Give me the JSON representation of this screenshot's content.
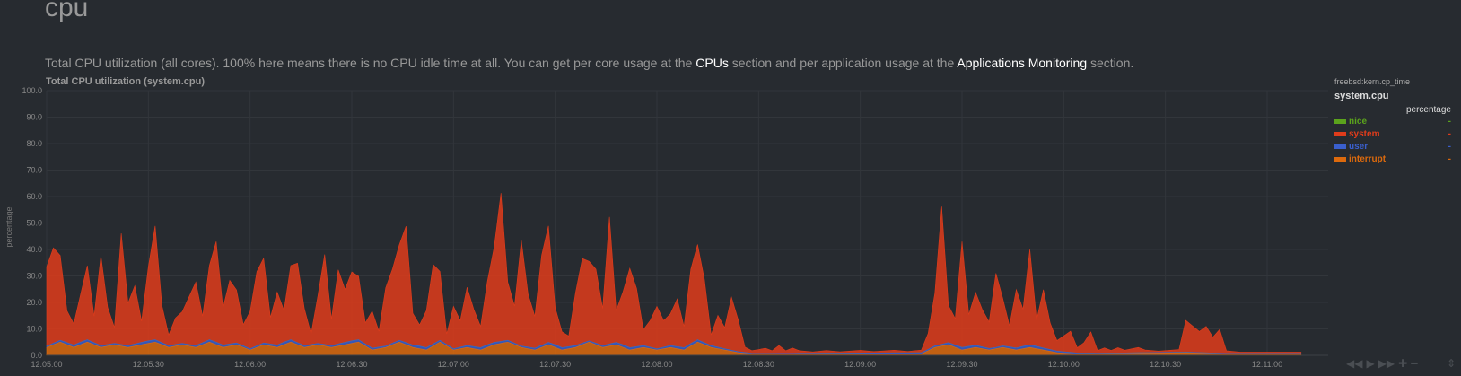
{
  "section": {
    "title": "cpu",
    "desc_1": "Total CPU utilization (all cores). 100% here means there is no CPU idle time at all. You can get per core usage at the ",
    "link_cpus": "CPUs",
    "desc_2": " section and per application usage at the ",
    "link_apps": "Applications Monitoring",
    "desc_3": " section."
  },
  "legend": {
    "context": "freebsd:kern.cp_time",
    "family": "system.cpu",
    "units": "percentage",
    "items": [
      {
        "name": "nice",
        "value": "-",
        "color": "#5ba31c"
      },
      {
        "name": "system",
        "value": "-",
        "color": "#e03c1b"
      },
      {
        "name": "user",
        "value": "-",
        "color": "#3a5fcd"
      },
      {
        "name": "interrupt",
        "value": "-",
        "color": "#dd6a0d"
      }
    ]
  },
  "toolbar": {
    "icons": [
      "rewind-icon",
      "play-icon",
      "fast-forward-icon",
      "zoom-in-icon",
      "zoom-out-icon"
    ],
    "glyphs": [
      "◀◀",
      "▶",
      "▶▶",
      "✚",
      "━"
    ],
    "resize_glyph": "⇕"
  },
  "chart_data": {
    "type": "area",
    "title": "Total CPU utilization (system.cpu)",
    "ylabel": "percentage",
    "xlabel": "",
    "ylim": [
      0,
      100
    ],
    "yticks": [
      "0.0",
      "10.0",
      "20.0",
      "30.0",
      "40.0",
      "50.0",
      "60.0",
      "70.0",
      "80.0",
      "90.0",
      "100.0"
    ],
    "x_start": "12:05:00",
    "x_end": "12:11:18",
    "xticks": [
      "12:05:00",
      "12:05:30",
      "12:06:00",
      "12:06:30",
      "12:07:00",
      "12:07:30",
      "12:08:00",
      "12:08:30",
      "12:09:00",
      "12:09:30",
      "12:10:00",
      "12:10:30",
      "12:11:00"
    ],
    "grid": true,
    "stacked": true,
    "series": [
      {
        "name": "system",
        "color": "#e03c1b",
        "points": [
          [
            "12:05:00",
            30
          ],
          [
            "12:05:02",
            36
          ],
          [
            "12:05:04",
            32
          ],
          [
            "12:05:06",
            12
          ],
          [
            "12:05:08",
            8
          ],
          [
            "12:05:10",
            18
          ],
          [
            "12:05:12",
            28
          ],
          [
            "12:05:14",
            10
          ],
          [
            "12:05:16",
            34
          ],
          [
            "12:05:18",
            14
          ],
          [
            "12:05:20",
            6
          ],
          [
            "12:05:22",
            42
          ],
          [
            "12:05:24",
            16
          ],
          [
            "12:05:26",
            22
          ],
          [
            "12:05:28",
            8
          ],
          [
            "12:05:30",
            28
          ],
          [
            "12:05:32",
            43
          ],
          [
            "12:05:34",
            14
          ],
          [
            "12:05:36",
            4
          ],
          [
            "12:05:38",
            10
          ],
          [
            "12:05:40",
            12
          ],
          [
            "12:05:42",
            18
          ],
          [
            "12:05:44",
            24
          ],
          [
            "12:05:46",
            10
          ],
          [
            "12:05:48",
            28
          ],
          [
            "12:05:50",
            38
          ],
          [
            "12:05:52",
            14
          ],
          [
            "12:05:54",
            24
          ],
          [
            "12:05:56",
            20
          ],
          [
            "12:05:58",
            8
          ],
          [
            "12:06:00",
            14
          ],
          [
            "12:06:02",
            28
          ],
          [
            "12:06:04",
            32
          ],
          [
            "12:06:06",
            10
          ],
          [
            "12:06:08",
            20
          ],
          [
            "12:06:10",
            12
          ],
          [
            "12:06:12",
            28
          ],
          [
            "12:06:14",
            30
          ],
          [
            "12:06:16",
            14
          ],
          [
            "12:06:18",
            4
          ],
          [
            "12:06:20",
            18
          ],
          [
            "12:06:22",
            34
          ],
          [
            "12:06:24",
            10
          ],
          [
            "12:06:26",
            28
          ],
          [
            "12:06:28",
            20
          ],
          [
            "12:06:30",
            26
          ],
          [
            "12:06:32",
            24
          ],
          [
            "12:06:34",
            8
          ],
          [
            "12:06:36",
            14
          ],
          [
            "12:06:38",
            6
          ],
          [
            "12:06:40",
            22
          ],
          [
            "12:06:42",
            28
          ],
          [
            "12:06:44",
            36
          ],
          [
            "12:06:46",
            44
          ],
          [
            "12:06:48",
            12
          ],
          [
            "12:06:50",
            8
          ],
          [
            "12:06:52",
            14
          ],
          [
            "12:06:54",
            30
          ],
          [
            "12:06:56",
            26
          ],
          [
            "12:06:58",
            4
          ],
          [
            "12:07:00",
            16
          ],
          [
            "12:07:02",
            10
          ],
          [
            "12:07:04",
            22
          ],
          [
            "12:07:06",
            14
          ],
          [
            "12:07:08",
            8
          ],
          [
            "12:07:10",
            24
          ],
          [
            "12:07:12",
            36
          ],
          [
            "12:07:14",
            56
          ],
          [
            "12:07:16",
            22
          ],
          [
            "12:07:18",
            14
          ],
          [
            "12:07:20",
            40
          ],
          [
            "12:07:22",
            20
          ],
          [
            "12:07:24",
            12
          ],
          [
            "12:07:26",
            34
          ],
          [
            "12:07:28",
            44
          ],
          [
            "12:07:30",
            14
          ],
          [
            "12:07:32",
            6
          ],
          [
            "12:07:34",
            4
          ],
          [
            "12:07:36",
            20
          ],
          [
            "12:07:38",
            32
          ],
          [
            "12:07:40",
            30
          ],
          [
            "12:07:42",
            28
          ],
          [
            "12:07:44",
            14
          ],
          [
            "12:07:46",
            48
          ],
          [
            "12:07:48",
            12
          ],
          [
            "12:07:50",
            20
          ],
          [
            "12:07:52",
            30
          ],
          [
            "12:07:54",
            22
          ],
          [
            "12:07:56",
            6
          ],
          [
            "12:07:58",
            10
          ],
          [
            "12:08:00",
            16
          ],
          [
            "12:08:02",
            10
          ],
          [
            "12:08:04",
            12
          ],
          [
            "12:08:06",
            18
          ],
          [
            "12:08:08",
            8
          ],
          [
            "12:08:10",
            28
          ],
          [
            "12:08:12",
            36
          ],
          [
            "12:08:14",
            24
          ],
          [
            "12:08:16",
            4
          ],
          [
            "12:08:18",
            12
          ],
          [
            "12:08:20",
            8
          ],
          [
            "12:08:22",
            20
          ],
          [
            "12:08:24",
            12
          ],
          [
            "12:08:26",
            2
          ],
          [
            "12:08:28",
            1
          ],
          [
            "12:08:32",
            2
          ],
          [
            "12:08:34",
            1
          ],
          [
            "12:08:36",
            3
          ],
          [
            "12:08:38",
            1
          ],
          [
            "12:08:40",
            2
          ],
          [
            "12:08:42",
            1
          ],
          [
            "12:08:46",
            0.5
          ],
          [
            "12:08:50",
            1
          ],
          [
            "12:08:54",
            0.5
          ],
          [
            "12:09:00",
            1
          ],
          [
            "12:09:04",
            0.5
          ],
          [
            "12:09:10",
            1
          ],
          [
            "12:09:14",
            0.5
          ],
          [
            "12:09:18",
            1
          ],
          [
            "12:09:20",
            6
          ],
          [
            "12:09:22",
            20
          ],
          [
            "12:09:24",
            52
          ],
          [
            "12:09:26",
            14
          ],
          [
            "12:09:28",
            10
          ],
          [
            "12:09:30",
            40
          ],
          [
            "12:09:32",
            12
          ],
          [
            "12:09:34",
            20
          ],
          [
            "12:09:36",
            14
          ],
          [
            "12:09:38",
            10
          ],
          [
            "12:09:40",
            28
          ],
          [
            "12:09:42",
            18
          ],
          [
            "12:09:44",
            8
          ],
          [
            "12:09:46",
            22
          ],
          [
            "12:09:48",
            14
          ],
          [
            "12:09:50",
            36
          ],
          [
            "12:09:52",
            10
          ],
          [
            "12:09:54",
            22
          ],
          [
            "12:09:56",
            10
          ],
          [
            "12:09:58",
            4
          ],
          [
            "12:10:00",
            6
          ],
          [
            "12:10:02",
            8
          ],
          [
            "12:10:04",
            2
          ],
          [
            "12:10:06",
            4
          ],
          [
            "12:10:08",
            8
          ],
          [
            "12:10:10",
            1
          ],
          [
            "12:10:12",
            2
          ],
          [
            "12:10:14",
            1
          ],
          [
            "12:10:16",
            2
          ],
          [
            "12:10:18",
            1
          ],
          [
            "12:10:22",
            2
          ],
          [
            "12:10:24",
            1
          ],
          [
            "12:10:28",
            0.5
          ],
          [
            "12:10:34",
            1
          ],
          [
            "12:10:36",
            12
          ],
          [
            "12:10:38",
            10
          ],
          [
            "12:10:40",
            8
          ],
          [
            "12:10:42",
            10
          ],
          [
            "12:10:44",
            6
          ],
          [
            "12:10:46",
            9
          ],
          [
            "12:10:48",
            1
          ],
          [
            "12:10:52",
            0.5
          ],
          [
            "12:10:58",
            0.5
          ],
          [
            "12:11:02",
            0.5
          ],
          [
            "12:11:06",
            0.5
          ],
          [
            "12:11:10",
            0.5
          ]
        ]
      },
      {
        "name": "interrupt",
        "color": "#dd6a0d",
        "points": [
          [
            "12:05:00",
            3
          ],
          [
            "12:05:04",
            5
          ],
          [
            "12:05:08",
            3
          ],
          [
            "12:05:12",
            5
          ],
          [
            "12:05:16",
            3
          ],
          [
            "12:05:20",
            4
          ],
          [
            "12:05:24",
            3
          ],
          [
            "12:05:28",
            4
          ],
          [
            "12:05:32",
            5
          ],
          [
            "12:05:36",
            3
          ],
          [
            "12:05:40",
            4
          ],
          [
            "12:05:44",
            3
          ],
          [
            "12:05:48",
            5
          ],
          [
            "12:05:52",
            3
          ],
          [
            "12:05:56",
            4
          ],
          [
            "12:06:00",
            2
          ],
          [
            "12:06:04",
            4
          ],
          [
            "12:06:08",
            3
          ],
          [
            "12:06:12",
            5
          ],
          [
            "12:06:16",
            3
          ],
          [
            "12:06:20",
            4
          ],
          [
            "12:06:24",
            3
          ],
          [
            "12:06:28",
            4
          ],
          [
            "12:06:32",
            5
          ],
          [
            "12:06:36",
            2
          ],
          [
            "12:06:40",
            3
          ],
          [
            "12:06:44",
            5
          ],
          [
            "12:06:48",
            3
          ],
          [
            "12:06:52",
            2
          ],
          [
            "12:06:56",
            5
          ],
          [
            "12:07:00",
            2
          ],
          [
            "12:07:04",
            3
          ],
          [
            "12:07:08",
            2
          ],
          [
            "12:07:12",
            4
          ],
          [
            "12:07:16",
            5
          ],
          [
            "12:07:20",
            3
          ],
          [
            "12:07:24",
            2
          ],
          [
            "12:07:28",
            4
          ],
          [
            "12:07:32",
            2
          ],
          [
            "12:07:36",
            3
          ],
          [
            "12:07:40",
            5
          ],
          [
            "12:07:44",
            3
          ],
          [
            "12:07:48",
            4
          ],
          [
            "12:07:52",
            2
          ],
          [
            "12:07:56",
            3
          ],
          [
            "12:08:00",
            2
          ],
          [
            "12:08:04",
            3
          ],
          [
            "12:08:08",
            2
          ],
          [
            "12:08:12",
            5
          ],
          [
            "12:08:16",
            3
          ],
          [
            "12:08:20",
            2
          ],
          [
            "12:08:24",
            1
          ],
          [
            "12:08:28",
            0.5
          ],
          [
            "12:09:18",
            0.5
          ],
          [
            "12:09:22",
            3
          ],
          [
            "12:09:26",
            4
          ],
          [
            "12:09:30",
            2
          ],
          [
            "12:09:34",
            3
          ],
          [
            "12:09:38",
            2
          ],
          [
            "12:09:42",
            3
          ],
          [
            "12:09:46",
            2
          ],
          [
            "12:09:50",
            3
          ],
          [
            "12:09:54",
            2
          ],
          [
            "12:09:58",
            1
          ],
          [
            "12:10:04",
            0.5
          ],
          [
            "12:10:36",
            1
          ],
          [
            "12:10:48",
            0.5
          ],
          [
            "12:11:10",
            0.5
          ]
        ]
      },
      {
        "name": "user",
        "color": "#3a5fcd",
        "points": [
          [
            "12:05:00",
            0.5
          ],
          [
            "12:05:10",
            1
          ],
          [
            "12:05:20",
            0.5
          ],
          [
            "12:05:30",
            1
          ],
          [
            "12:05:40",
            0.5
          ],
          [
            "12:05:50",
            1
          ],
          [
            "12:06:00",
            0.5
          ],
          [
            "12:06:10",
            1
          ],
          [
            "12:06:20",
            0.5
          ],
          [
            "12:06:30",
            1
          ],
          [
            "12:06:40",
            0.5
          ],
          [
            "12:06:50",
            1
          ],
          [
            "12:07:00",
            0.5
          ],
          [
            "12:07:10",
            1
          ],
          [
            "12:07:20",
            0.5
          ],
          [
            "12:07:30",
            1
          ],
          [
            "12:07:40",
            0.5
          ],
          [
            "12:07:50",
            1
          ],
          [
            "12:08:00",
            0.5
          ],
          [
            "12:08:10",
            1
          ],
          [
            "12:08:20",
            0.5
          ],
          [
            "12:08:30",
            0.2
          ],
          [
            "12:09:20",
            0.5
          ],
          [
            "12:09:30",
            1
          ],
          [
            "12:09:40",
            0.5
          ],
          [
            "12:09:50",
            1
          ],
          [
            "12:10:00",
            0.5
          ],
          [
            "12:10:10",
            0.2
          ],
          [
            "12:11:10",
            0.2
          ]
        ]
      },
      {
        "name": "nice",
        "color": "#5ba31c",
        "points": [
          [
            "12:05:00",
            0
          ],
          [
            "12:11:10",
            0
          ]
        ]
      }
    ]
  }
}
